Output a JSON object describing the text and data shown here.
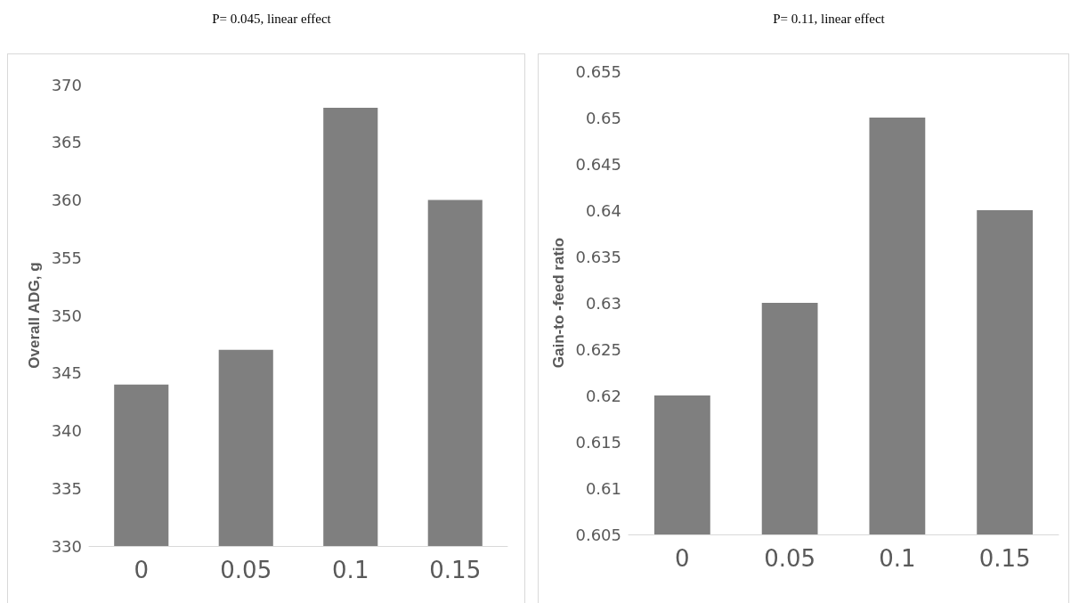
{
  "chart_data": [
    {
      "type": "bar",
      "title": "P= 0.045, linear effect",
      "ylabel": "Overall ADG, g",
      "categories": [
        "0",
        "0.05",
        "0.1",
        "0.15"
      ],
      "values": [
        344,
        347,
        368,
        360
      ],
      "color": "#7f7f7f",
      "ylim": [
        330,
        370
      ],
      "yticks": [
        330,
        335,
        340,
        345,
        350,
        355,
        360,
        365,
        370
      ],
      "grid": false
    },
    {
      "type": "bar",
      "title": "P= 0.11, linear effect",
      "ylabel": "Gain-to -feed ratio",
      "categories": [
        "0",
        "0.05",
        "0.1",
        "0.15"
      ],
      "values": [
        0.62,
        0.63,
        0.65,
        0.64
      ],
      "color": "#7f7f7f",
      "ylim": [
        0.605,
        0.655
      ],
      "yticks": [
        0.605,
        0.61,
        0.615,
        0.62,
        0.625,
        0.63,
        0.635,
        0.64,
        0.645,
        0.65,
        0.655
      ],
      "grid": false
    }
  ]
}
